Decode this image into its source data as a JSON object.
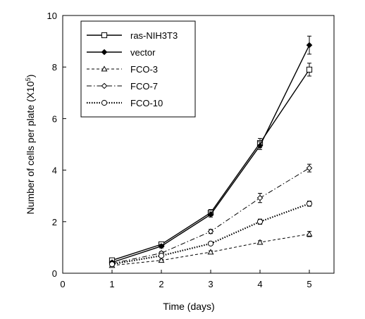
{
  "chart_data": {
    "type": "line",
    "xlabel": "Time (days)",
    "ylabel_main": "Number of cells per plate (X10",
    "ylabel_sup": "5",
    "ylabel_end": ")",
    "xlim": [
      0,
      5.5
    ],
    "ylim": [
      0,
      10
    ],
    "xticks": [
      0,
      1,
      2,
      3,
      4,
      5
    ],
    "yticks": [
      0,
      2,
      4,
      6,
      8,
      10
    ],
    "grid": false,
    "legend_position": "top-left",
    "x": [
      1,
      2,
      3,
      4,
      5
    ],
    "series": [
      {
        "name": "ras-NIH3T3",
        "values": [
          0.5,
          1.12,
          2.35,
          5.05,
          7.9
        ],
        "errors": [
          0.06,
          0.08,
          0.12,
          0.18,
          0.25
        ],
        "marker": "square",
        "dash": "solid",
        "width": 1.4
      },
      {
        "name": "vector",
        "values": [
          0.42,
          1.05,
          2.28,
          4.95,
          8.85
        ],
        "errors": [
          0.05,
          0.07,
          0.1,
          0.15,
          0.35
        ],
        "marker": "diamond-filled",
        "dash": "solid",
        "width": 1.4
      },
      {
        "name": "FCO-3",
        "values": [
          0.3,
          0.5,
          0.82,
          1.2,
          1.52
        ],
        "errors": [
          0.03,
          0.04,
          0.05,
          0.06,
          0.1
        ],
        "marker": "triangle",
        "dash": "dashed",
        "width": 1
      },
      {
        "name": "FCO-7",
        "values": [
          0.38,
          0.78,
          1.62,
          2.92,
          4.08
        ],
        "errors": [
          0.04,
          0.06,
          0.08,
          0.18,
          0.15
        ],
        "marker": "diamond",
        "dash": "dashdot",
        "width": 1
      },
      {
        "name": "FCO-10",
        "values": [
          0.35,
          0.68,
          1.15,
          2.0,
          2.7
        ],
        "errors": [
          0.03,
          0.05,
          0.06,
          0.1,
          0.1
        ],
        "marker": "circle",
        "dash": "dotted",
        "width": 2.2
      }
    ]
  }
}
